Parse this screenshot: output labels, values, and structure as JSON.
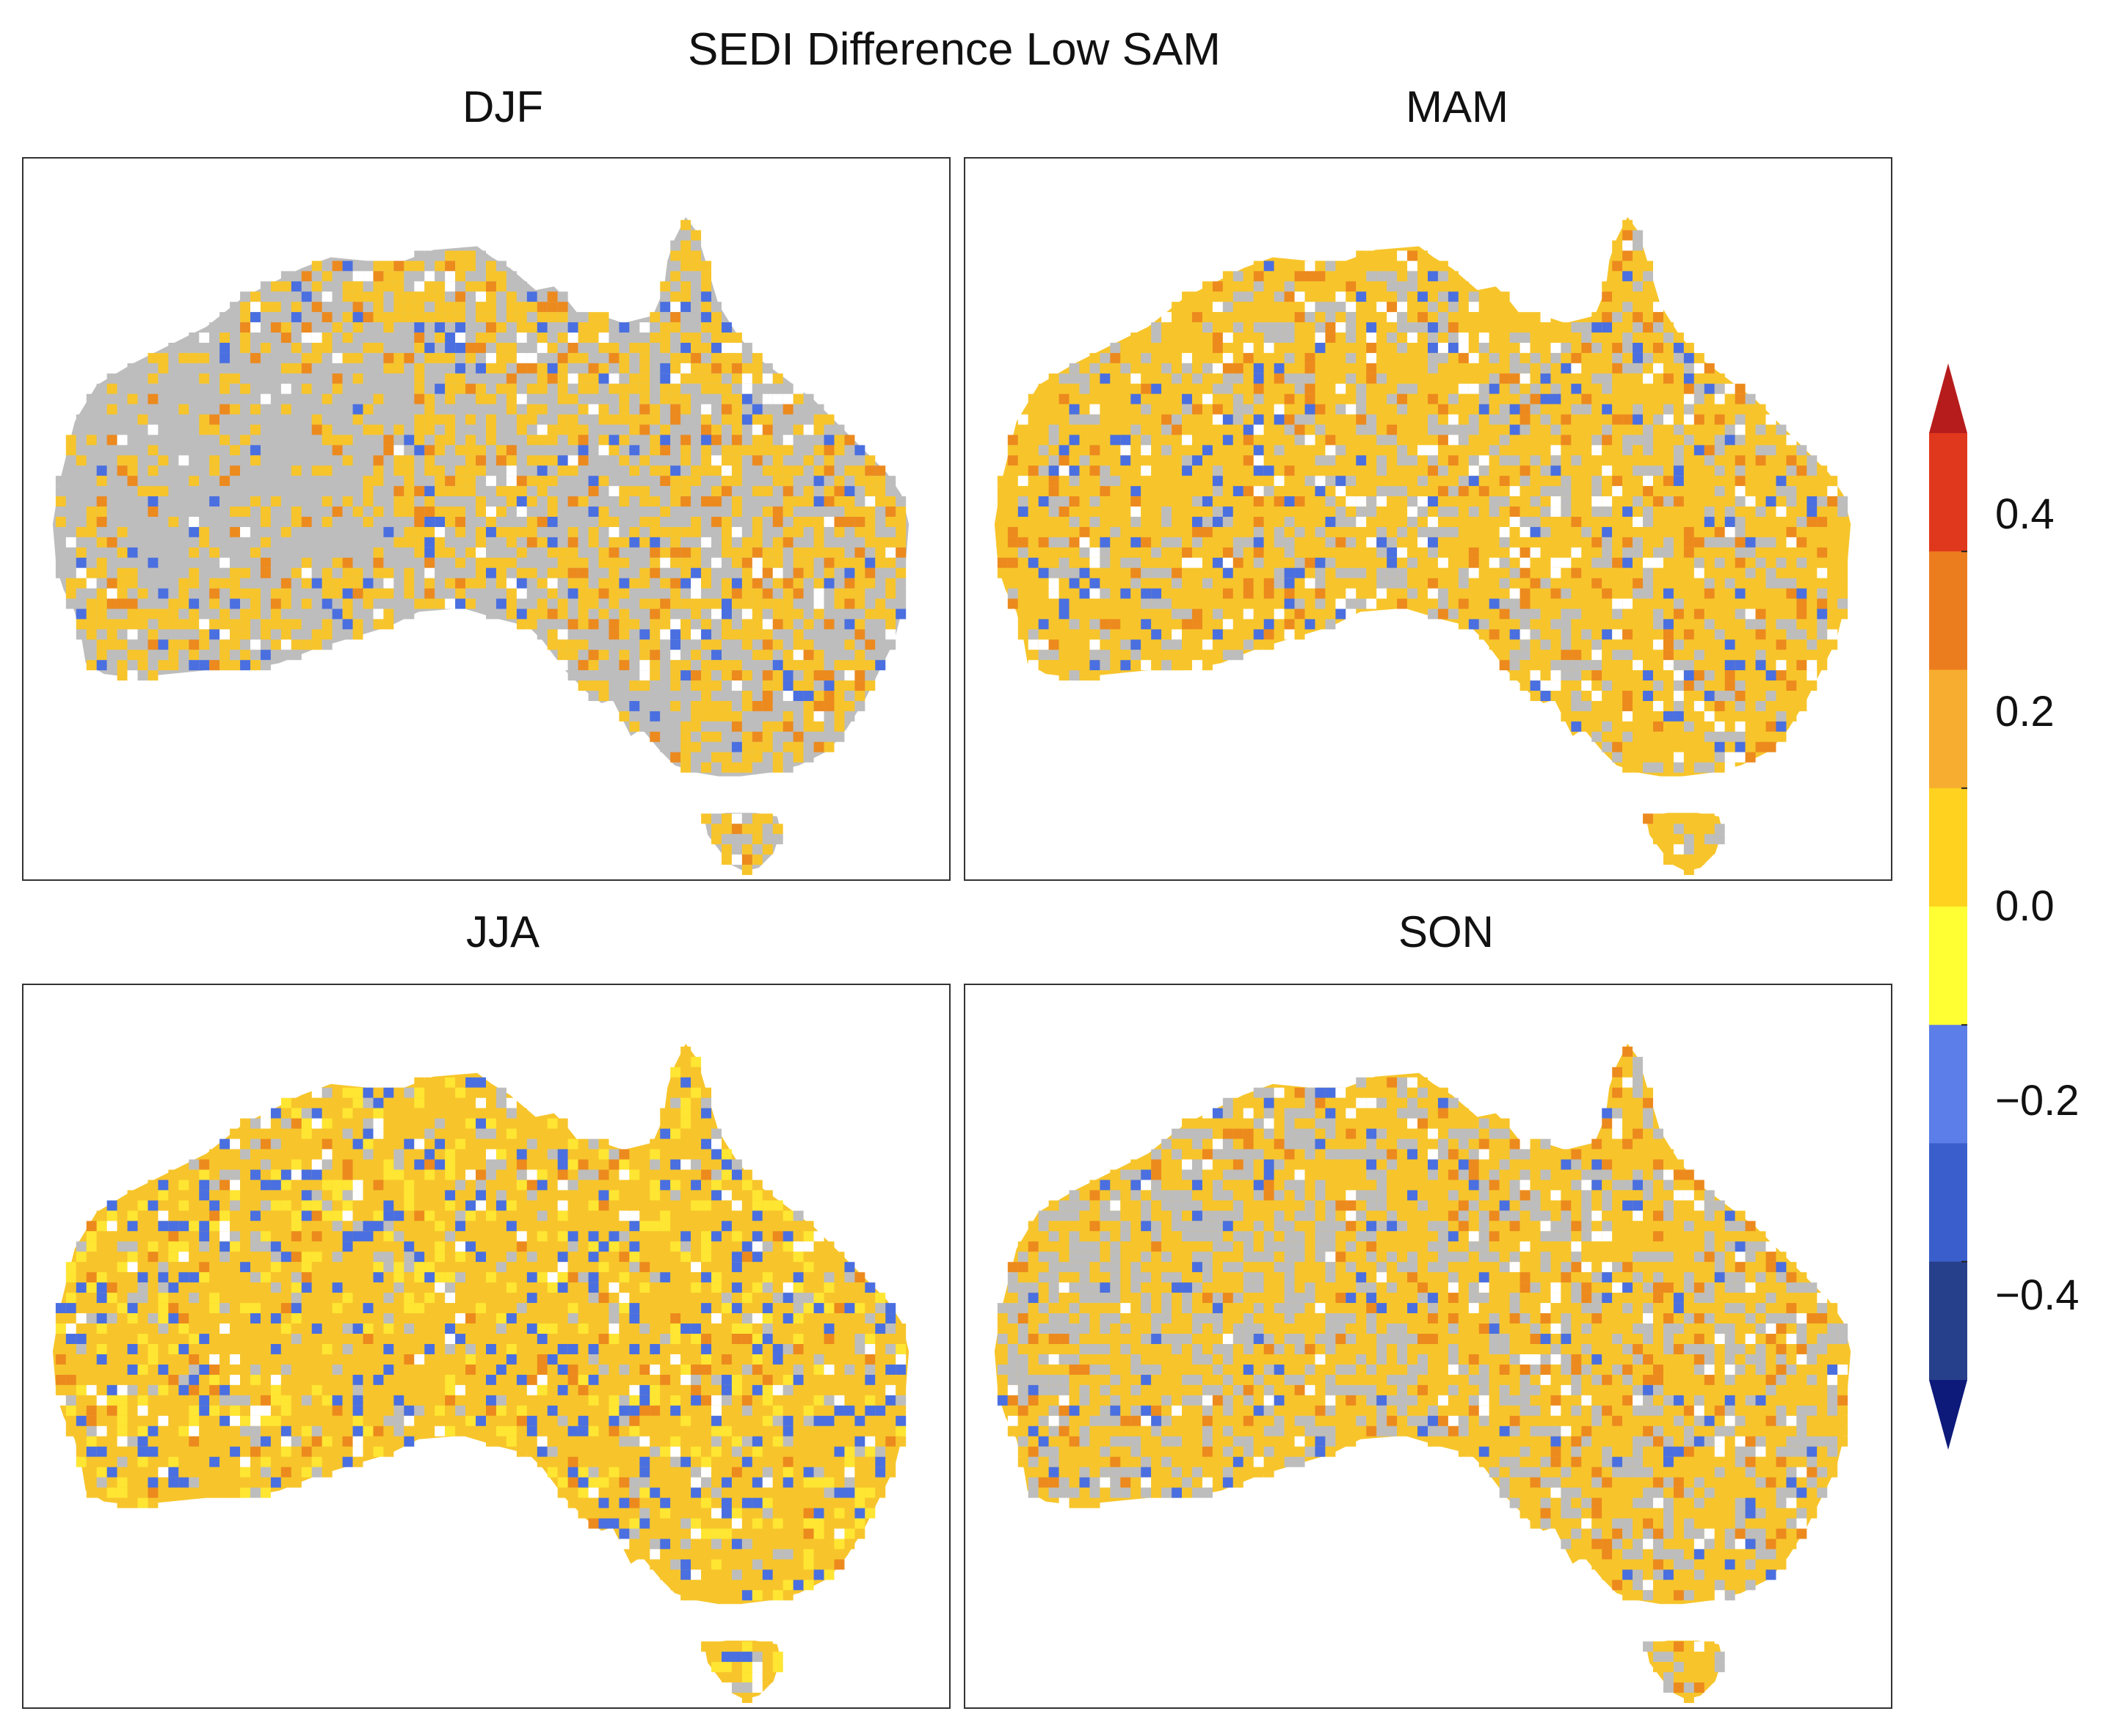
{
  "figure": {
    "title": "SEDI Difference Low SAM"
  },
  "panels": [
    {
      "season": "DJF"
    },
    {
      "season": "MAM"
    },
    {
      "season": "JJA"
    },
    {
      "season": "SON"
    }
  ],
  "colorbar": {
    "tick_labels": [
      "0.4",
      "0.2",
      "0.0",
      "−0.2",
      "−0.4"
    ],
    "ticks": [
      0.4,
      0.2,
      0.0,
      -0.2,
      -0.4
    ],
    "levels": [
      -0.5,
      -0.4,
      -0.3,
      -0.2,
      -0.1,
      0.0,
      0.1,
      0.2,
      0.3,
      0.4,
      0.5
    ],
    "colors": [
      "#0d1a7a",
      "#27408b",
      "#3a5fcd",
      "#5b7ee8",
      "#ffff33",
      "#ffd21f",
      "#f7ad2f",
      "#ec7d1e",
      "#e0381c",
      "#b71c1c"
    ],
    "extend": "both",
    "nan_color": "#bdbdbd"
  },
  "map_colors": {
    "land_no_data": "#ffffff",
    "not_significant": "#bdbdbd",
    "positive_main": "#f7c52b",
    "positive_strong": "#ec8a1e",
    "negative": "#4a6fe0"
  }
}
